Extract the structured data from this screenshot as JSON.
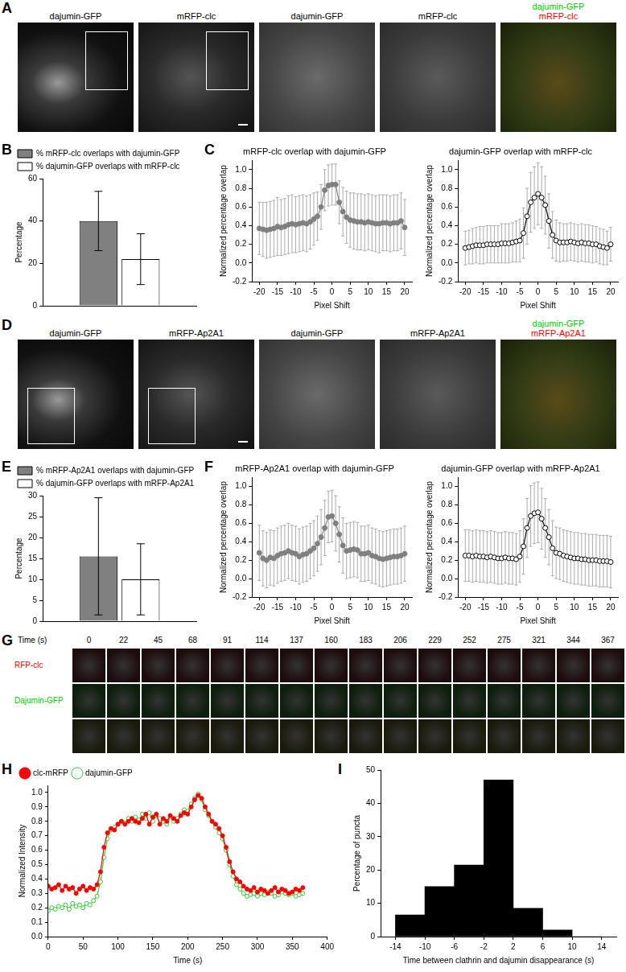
{
  "figure_images": [
    {
      "panel": "A",
      "frames": [
        {
          "label": [
            "dajumin-GFP"
          ]
        },
        {
          "label": [
            "mRFP-clc"
          ]
        },
        {
          "label": [
            "dajumin-GFP"
          ]
        },
        {
          "label": [
            "mRFP-clc"
          ]
        },
        {
          "label": [
            "dajumin-GFP",
            "mRFP-clc"
          ],
          "label_colors": [
            "#00cc00",
            "#ff0000"
          ]
        }
      ]
    },
    {
      "panel": "D",
      "frames": [
        {
          "label": [
            "dajumin-GFP"
          ]
        },
        {
          "label": [
            "mRFP-Ap2A1"
          ]
        },
        {
          "label": [
            "dajumin-GFP"
          ]
        },
        {
          "label": [
            "mRFP-Ap2A1"
          ]
        },
        {
          "label": [
            "dajumin-GFP",
            "mRFP-Ap2A1"
          ],
          "label_colors": [
            "#00cc00",
            "#ff0000"
          ]
        }
      ]
    }
  ],
  "montage": {
    "panel": "G",
    "time_title": "Time (s)",
    "times": [
      0,
      22,
      45,
      68,
      91,
      114,
      137,
      160,
      183,
      206,
      229,
      252,
      275,
      321,
      344,
      367
    ],
    "rows": [
      {
        "label": "RFP-clc",
        "color": "#ff0000"
      },
      {
        "label": "Dajumin-GFP",
        "color": "#00cc00"
      }
    ]
  },
  "chart_data": [
    {
      "panel": "B",
      "type": "bar",
      "categories": [
        null
      ],
      "y_label": "Percentage",
      "series": [
        {
          "name": "% mRFP-clc overlaps with dajumin-GFP",
          "color": "#808080",
          "values": [
            40
          ],
          "errors": [
            14
          ]
        },
        {
          "name": "% dajumin-GFP overlaps with mRFP-clc",
          "color": "#ffffff",
          "values": [
            22
          ],
          "errors": [
            12
          ]
        }
      ],
      "ylim": [
        0,
        60
      ],
      "yticks": [
        0,
        20,
        40,
        60
      ],
      "grid": false,
      "legend": "top",
      "tick_labels": "y"
    },
    {
      "panel": "C",
      "type": "line",
      "title": "mRFP-clc overlap with dajumin-GFP",
      "x_label": "Pixel Shift",
      "y_label": "Normalized percentage overlap",
      "x": [
        -20,
        -19,
        -18,
        -17,
        -16,
        -15,
        -14,
        -13,
        -12,
        -11,
        -10,
        -9,
        -8,
        -7,
        -6,
        -5,
        -4,
        -3,
        -2,
        -1,
        0,
        1,
        2,
        3,
        4,
        5,
        6,
        7,
        8,
        9,
        10,
        11,
        12,
        13,
        14,
        15,
        16,
        17,
        18,
        19,
        20
      ],
      "series": [
        {
          "color": "#808080",
          "marker": "circle",
          "line_style": "solid",
          "values": [
            0.37,
            0.36,
            0.35,
            0.36,
            0.37,
            0.39,
            0.38,
            0.39,
            0.41,
            0.42,
            0.41,
            0.42,
            0.43,
            0.42,
            0.44,
            0.47,
            0.5,
            0.6,
            0.78,
            0.83,
            0.84,
            0.84,
            0.65,
            0.55,
            0.49,
            0.46,
            0.45,
            0.44,
            0.44,
            0.43,
            0.44,
            0.43,
            0.42,
            0.42,
            0.43,
            0.43,
            0.42,
            0.43,
            0.43,
            0.45,
            0.38
          ],
          "errors": [
            0.28,
            0.29,
            0.3,
            0.3,
            0.3,
            0.31,
            0.3,
            0.3,
            0.31,
            0.31,
            0.3,
            0.3,
            0.3,
            0.3,
            0.29,
            0.28,
            0.26,
            0.24,
            0.22,
            0.22,
            0.22,
            0.22,
            0.23,
            0.26,
            0.28,
            0.29,
            0.3,
            0.3,
            0.3,
            0.3,
            0.3,
            0.3,
            0.3,
            0.31,
            0.3,
            0.3,
            0.3,
            0.3,
            0.3,
            0.3,
            0.3
          ]
        }
      ],
      "xlim": [
        -22,
        22
      ],
      "xticks": [
        -20,
        -15,
        -10,
        -5,
        0,
        5,
        10,
        15,
        20
      ],
      "ylim": [
        -0.2,
        1.1
      ],
      "yticks": [
        -0.2,
        {
          "value": 0,
          "label": "0.0"
        },
        0.2,
        0.4,
        0.6,
        0.8,
        {
          "value": 1,
          "label": "1.0"
        }
      ],
      "grid": false
    },
    {
      "type": "line",
      "title": "dajumin-GFP overlap with mRFP-clc",
      "x_label": "Pixel Shift",
      "y_label": "Normalized percentage overlap",
      "x": [
        -20,
        -19,
        -18,
        -17,
        -16,
        -15,
        -14,
        -13,
        -12,
        -11,
        -10,
        -9,
        -8,
        -7,
        -6,
        -5,
        -4,
        -3,
        -2,
        -1,
        0,
        1,
        2,
        3,
        4,
        5,
        6,
        7,
        8,
        9,
        10,
        11,
        12,
        13,
        14,
        15,
        16,
        17,
        18,
        19,
        20
      ],
      "series": [
        {
          "color": "#000000",
          "marker": "open_circle",
          "line_style": "solid",
          "values": [
            0.16,
            0.17,
            0.18,
            0.19,
            0.19,
            0.19,
            0.2,
            0.2,
            0.2,
            0.2,
            0.21,
            0.21,
            0.21,
            0.22,
            0.23,
            0.24,
            0.32,
            0.5,
            0.65,
            0.7,
            0.74,
            0.7,
            0.62,
            0.45,
            0.3,
            0.24,
            0.22,
            0.22,
            0.22,
            0.23,
            0.22,
            0.21,
            0.22,
            0.21,
            0.21,
            0.2,
            0.2,
            0.18,
            0.17,
            0.16,
            0.2
          ],
          "errors": [
            0.18,
            0.18,
            0.19,
            0.19,
            0.2,
            0.2,
            0.2,
            0.2,
            0.2,
            0.2,
            0.21,
            0.21,
            0.21,
            0.21,
            0.22,
            0.23,
            0.27,
            0.3,
            0.32,
            0.33,
            0.33,
            0.33,
            0.31,
            0.29,
            0.25,
            0.22,
            0.21,
            0.2,
            0.2,
            0.2,
            0.2,
            0.2,
            0.2,
            0.2,
            0.2,
            0.2,
            0.19,
            0.19,
            0.19,
            0.18,
            0.18
          ]
        }
      ],
      "xlim": [
        -22,
        22
      ],
      "xticks": [
        -20,
        -15,
        -10,
        -5,
        0,
        5,
        10,
        15,
        20
      ],
      "ylim": [
        -0.2,
        1.1
      ],
      "yticks": [
        -0.2,
        {
          "value": 0,
          "label": "0.0"
        },
        0.2,
        0.4,
        0.6,
        0.8,
        {
          "value": 1,
          "label": "1.0"
        }
      ],
      "grid": false
    },
    {
      "panel": "E",
      "type": "bar",
      "categories": [
        null
      ],
      "y_label": "Percentage",
      "series": [
        {
          "name": "% mRFP-Ap2A1 overlaps with dajumin-GFP",
          "color": "#808080",
          "values": [
            15.5
          ],
          "errors": [
            14
          ]
        },
        {
          "name": "% dajumin-GFP overlaps with mRFP-Ap2A1",
          "color": "#ffffff",
          "values": [
            10
          ],
          "errors": [
            8.5
          ]
        }
      ],
      "ylim": [
        0,
        30
      ],
      "yticks": [
        0,
        5,
        10,
        15,
        20,
        25,
        30
      ],
      "grid": false,
      "legend": "top",
      "tick_labels": "y"
    },
    {
      "panel": "F",
      "type": "line",
      "title": "mRFP-Ap2A1 overlap with dajumin-GFP",
      "x_label": "Pixel Shift",
      "y_label": "Normalized percentage overlap",
      "x": [
        -20,
        -19,
        -18,
        -17,
        -16,
        -15,
        -14,
        -13,
        -12,
        -11,
        -10,
        -9,
        -8,
        -7,
        -6,
        -5,
        -4,
        -3,
        -2,
        -1,
        0,
        1,
        2,
        3,
        4,
        5,
        6,
        7,
        8,
        9,
        10,
        11,
        12,
        13,
        14,
        15,
        16,
        17,
        18,
        19,
        20
      ],
      "series": [
        {
          "color": "#808080",
          "marker": "circle",
          "line_style": "solid",
          "values": [
            0.28,
            0.22,
            0.2,
            0.23,
            0.22,
            0.25,
            0.27,
            0.28,
            0.3,
            0.28,
            0.27,
            0.24,
            0.26,
            0.27,
            0.3,
            0.33,
            0.38,
            0.45,
            0.55,
            0.67,
            0.68,
            0.6,
            0.48,
            0.36,
            0.3,
            0.31,
            0.32,
            0.31,
            0.27,
            0.27,
            0.28,
            0.25,
            0.24,
            0.22,
            0.21,
            0.22,
            0.23,
            0.24,
            0.24,
            0.25,
            0.27
          ],
          "errors": [
            0.3,
            0.3,
            0.3,
            0.3,
            0.3,
            0.3,
            0.3,
            0.3,
            0.3,
            0.3,
            0.3,
            0.3,
            0.3,
            0.3,
            0.3,
            0.3,
            0.3,
            0.3,
            0.3,
            0.28,
            0.28,
            0.3,
            0.3,
            0.3,
            0.3,
            0.3,
            0.3,
            0.3,
            0.3,
            0.3,
            0.3,
            0.3,
            0.3,
            0.3,
            0.3,
            0.3,
            0.3,
            0.3,
            0.3,
            0.3,
            0.3
          ]
        }
      ],
      "xlim": [
        -22,
        22
      ],
      "xticks": [
        -20,
        -15,
        -10,
        -5,
        0,
        5,
        10,
        15,
        20
      ],
      "ylim": [
        -0.2,
        1.1
      ],
      "yticks": [
        -0.2,
        {
          "value": 0,
          "label": "0.0"
        },
        0.2,
        0.4,
        0.6,
        0.8,
        {
          "value": 1,
          "label": "1.0"
        }
      ],
      "grid": false
    },
    {
      "type": "line",
      "title": "dajumin-GFP overlap with mRFP-Ap2A1",
      "x_label": "Pixel Shift",
      "y_label": "Normalized percentage overlap",
      "x": [
        -20,
        -19,
        -18,
        -17,
        -16,
        -15,
        -14,
        -13,
        -12,
        -11,
        -10,
        -9,
        -8,
        -7,
        -6,
        -5,
        -4,
        -3,
        -2,
        -1,
        0,
        1,
        2,
        3,
        4,
        5,
        6,
        7,
        8,
        9,
        10,
        11,
        12,
        13,
        14,
        15,
        16,
        17,
        18,
        19,
        20
      ],
      "series": [
        {
          "color": "#000000",
          "marker": "open_circle",
          "line_style": "solid",
          "values": [
            0.25,
            0.25,
            0.24,
            0.25,
            0.24,
            0.24,
            0.23,
            0.24,
            0.23,
            0.22,
            0.22,
            0.23,
            0.22,
            0.22,
            0.21,
            0.24,
            0.35,
            0.55,
            0.68,
            0.71,
            0.72,
            0.65,
            0.55,
            0.45,
            0.33,
            0.28,
            0.27,
            0.25,
            0.24,
            0.23,
            0.22,
            0.22,
            0.21,
            0.21,
            0.2,
            0.2,
            0.2,
            0.19,
            0.19,
            0.19,
            0.18
          ],
          "errors": [
            0.28,
            0.28,
            0.28,
            0.28,
            0.28,
            0.28,
            0.28,
            0.28,
            0.28,
            0.28,
            0.28,
            0.28,
            0.28,
            0.28,
            0.28,
            0.28,
            0.3,
            0.32,
            0.33,
            0.33,
            0.33,
            0.33,
            0.32,
            0.3,
            0.3,
            0.28,
            0.28,
            0.28,
            0.28,
            0.28,
            0.28,
            0.28,
            0.28,
            0.28,
            0.28,
            0.28,
            0.28,
            0.28,
            0.28,
            0.28,
            0.28
          ]
        }
      ],
      "xlim": [
        -22,
        22
      ],
      "xticks": [
        -20,
        -15,
        -10,
        -5,
        0,
        5,
        10,
        15,
        20
      ],
      "ylim": [
        -0.2,
        1.1
      ],
      "yticks": [
        -0.2,
        {
          "value": 0,
          "label": "0.0"
        },
        0.2,
        0.4,
        0.6,
        0.8,
        {
          "value": 1,
          "label": "1.0"
        }
      ],
      "grid": false
    },
    {
      "panel": "H",
      "type": "line",
      "x_label": "Time (s)",
      "y_label": "Normalized Intensity",
      "x": [
        0,
        5,
        10,
        15,
        20,
        25,
        30,
        35,
        40,
        45,
        50,
        55,
        60,
        65,
        70,
        75,
        80,
        85,
        90,
        95,
        100,
        105,
        110,
        115,
        120,
        125,
        130,
        135,
        140,
        145,
        150,
        155,
        160,
        165,
        170,
        175,
        180,
        185,
        190,
        195,
        200,
        205,
        210,
        215,
        220,
        225,
        230,
        235,
        240,
        245,
        250,
        255,
        260,
        265,
        270,
        275,
        280,
        285,
        290,
        295,
        300,
        305,
        310,
        315,
        320,
        325,
        330,
        335,
        340,
        345,
        350,
        355,
        360,
        365
      ],
      "series": [
        {
          "name": "clc-mRFP",
          "color": "#ff0000",
          "marker": "circle",
          "line_style": "solid",
          "values": [
            0.35,
            0.33,
            0.34,
            0.36,
            0.32,
            0.35,
            0.33,
            0.34,
            0.3,
            0.33,
            0.35,
            0.32,
            0.34,
            0.33,
            0.36,
            0.45,
            0.62,
            0.72,
            0.75,
            0.74,
            0.78,
            0.8,
            0.78,
            0.8,
            0.82,
            0.8,
            0.79,
            0.82,
            0.85,
            0.78,
            0.83,
            0.85,
            0.78,
            0.82,
            0.8,
            0.84,
            0.82,
            0.8,
            0.84,
            0.86,
            0.85,
            0.9,
            0.95,
            0.98,
            0.96,
            0.9,
            0.85,
            0.8,
            0.78,
            0.75,
            0.7,
            0.62,
            0.52,
            0.45,
            0.4,
            0.38,
            0.35,
            0.33,
            0.32,
            0.34,
            0.31,
            0.33,
            0.32,
            0.3,
            0.32,
            0.34,
            0.31,
            0.33,
            0.32,
            0.3,
            0.31,
            0.33,
            0.32,
            0.34
          ]
        },
        {
          "name": "dajumin-GFP",
          "color": "#33cc33",
          "marker": "open_circle",
          "line_style": "solid",
          "values": [
            0.18,
            0.2,
            0.19,
            0.21,
            0.2,
            0.22,
            0.19,
            0.23,
            0.21,
            0.22,
            0.2,
            0.23,
            0.22,
            0.25,
            0.28,
            0.38,
            0.55,
            0.68,
            0.74,
            0.76,
            0.78,
            0.8,
            0.79,
            0.82,
            0.8,
            0.83,
            0.81,
            0.85,
            0.82,
            0.86,
            0.8,
            0.84,
            0.82,
            0.8,
            0.78,
            0.83,
            0.8,
            0.82,
            0.85,
            0.88,
            0.87,
            0.92,
            0.96,
            0.99,
            0.95,
            0.88,
            0.84,
            0.8,
            0.76,
            0.72,
            0.68,
            0.6,
            0.5,
            0.42,
            0.36,
            0.33,
            0.3,
            0.28,
            0.29,
            0.3,
            0.28,
            0.3,
            0.29,
            0.31,
            0.3,
            0.28,
            0.29,
            0.31,
            0.3,
            0.29,
            0.3,
            0.28,
            0.29,
            0.3
          ]
        }
      ],
      "xlim": [
        0,
        400
      ],
      "xticks": [
        0,
        50,
        100,
        150,
        200,
        250,
        300,
        350,
        400
      ],
      "ylim": [
        0,
        1.05
      ],
      "yticks": [
        {
          "value": 0,
          "label": "0.0"
        },
        0.1,
        0.2,
        0.3,
        0.4,
        0.5,
        0.6,
        0.7,
        0.8,
        0.9,
        {
          "value": 1,
          "label": "1.0"
        }
      ],
      "grid": false,
      "legend": "top"
    },
    {
      "panel": "I",
      "type": "histogram",
      "x_label": "Time between clathrin and dajumin disappearance (s)",
      "y_label": "Percentage of puncta",
      "bins": [
        -14,
        -10,
        -6,
        -2,
        2,
        6,
        10,
        14
      ],
      "values": [
        6.5,
        15,
        21.5,
        47,
        8.5,
        2,
        0
      ],
      "color": "#000000",
      "xlim": [
        -16,
        16
      ],
      "xticks": [
        -14,
        -10,
        -6,
        -2,
        2,
        6,
        10,
        14
      ],
      "ylim": [
        0,
        50
      ],
      "yticks": [
        0,
        10,
        20,
        30,
        40,
        50
      ],
      "grid": false
    }
  ]
}
